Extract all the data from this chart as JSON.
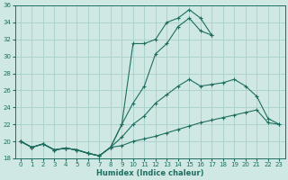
{
  "xlabel": "Humidex (Indice chaleur)",
  "bg_color": "#cfe8e3",
  "grid_color": "#a8d0cc",
  "line_color": "#1e6e60",
  "xlim_min": -0.5,
  "xlim_max": 23.5,
  "ylim_min": 18,
  "ylim_max": 36,
  "yticks": [
    18,
    20,
    22,
    24,
    26,
    28,
    30,
    32,
    34,
    36
  ],
  "xticks": [
    0,
    1,
    2,
    3,
    4,
    5,
    6,
    7,
    8,
    9,
    10,
    11,
    12,
    13,
    14,
    15,
    16,
    17,
    18,
    19,
    20,
    21,
    22,
    23
  ],
  "curves": [
    {
      "x": [
        0,
        1,
        2,
        3,
        4,
        5,
        6,
        7,
        8,
        9,
        10,
        11,
        12,
        13,
        14,
        15,
        16,
        17,
        18,
        19,
        20,
        21,
        22,
        23
      ],
      "y": [
        20.0,
        19.3,
        19.7,
        19.0,
        19.2,
        19.0,
        18.6,
        18.3,
        19.3,
        19.5,
        20.0,
        20.3,
        20.6,
        21.0,
        21.4,
        21.8,
        22.2,
        22.5,
        22.8,
        23.1,
        23.4,
        23.7,
        22.2,
        22.0
      ],
      "linestyle": "-",
      "marker": "+",
      "markersize": 3.5,
      "lw": 0.8
    },
    {
      "x": [
        0,
        1,
        2,
        3,
        4,
        5,
        6,
        7,
        8,
        9,
        10,
        11,
        12,
        13,
        14,
        15,
        16,
        17,
        18,
        19,
        20,
        21,
        22,
        23
      ],
      "y": [
        20.0,
        19.3,
        19.7,
        19.0,
        19.2,
        19.0,
        18.6,
        18.3,
        19.3,
        20.5,
        22.0,
        23.0,
        24.5,
        25.5,
        26.5,
        27.3,
        26.5,
        26.7,
        26.9,
        27.3,
        26.5,
        25.3,
        22.7,
        22.0
      ],
      "linestyle": "-",
      "marker": "+",
      "markersize": 3.5,
      "lw": 0.8
    },
    {
      "x": [
        0,
        1,
        2,
        3,
        4,
        5,
        6,
        7,
        8,
        9,
        10,
        11,
        12,
        13,
        14,
        15,
        16,
        17,
        18,
        19,
        20,
        21,
        22,
        23
      ],
      "y": [
        20.0,
        19.3,
        19.7,
        19.0,
        19.2,
        19.0,
        18.6,
        18.3,
        19.3,
        22.0,
        24.5,
        26.5,
        30.3,
        31.5,
        33.5,
        34.5,
        33.0,
        32.5,
        null,
        null,
        null,
        null,
        null,
        null
      ],
      "linestyle": "-",
      "marker": "+",
      "markersize": 3.5,
      "lw": 0.8
    },
    {
      "x": [
        0,
        1,
        2,
        3,
        4,
        5,
        6,
        7,
        8,
        9,
        10,
        11,
        12,
        13,
        14,
        15,
        16,
        17
      ],
      "y": [
        20.0,
        19.3,
        19.7,
        19.0,
        19.2,
        19.0,
        18.6,
        18.3,
        19.3,
        22.0,
        31.5,
        31.5,
        32.0,
        34.0,
        34.5,
        35.5,
        34.5,
        32.5
      ],
      "linestyle": "-",
      "marker": "+",
      "markersize": 3.5,
      "lw": 0.8
    }
  ]
}
